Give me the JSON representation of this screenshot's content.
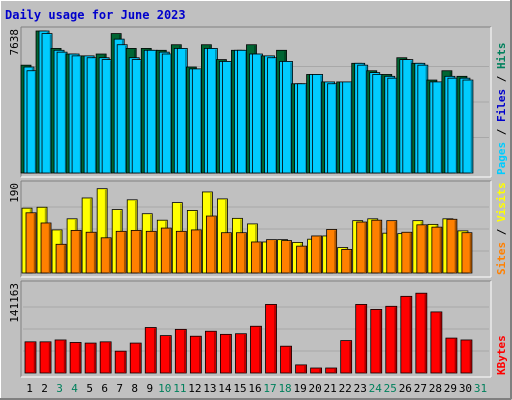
{
  "chart_data": {
    "type": "bar",
    "title": "Daily usage for June 2023",
    "categories": [
      "1",
      "2",
      "3",
      "4",
      "5",
      "6",
      "7",
      "8",
      "9",
      "10",
      "11",
      "12",
      "13",
      "14",
      "15",
      "16",
      "17",
      "18",
      "19",
      "20",
      "21",
      "22",
      "23",
      "24",
      "25",
      "26",
      "27",
      "28",
      "29",
      "30",
      "31"
    ],
    "weekend_days": [
      "3",
      "4",
      "10",
      "11",
      "17",
      "18",
      "24",
      "25",
      "31"
    ],
    "colors": {
      "hits": "#006633",
      "files": "#00ccff",
      "pages": "#00ccff",
      "visits": "#ffff00",
      "sites": "#ff8000",
      "kbytes": "#ff0000",
      "weekday_label": "#000000",
      "weekend_label": "#00805c",
      "legend_hits": "#00805c",
      "legend_files": "#0000cc",
      "legend_pages": "#00ccff",
      "legend_visits": "#ffff00",
      "legend_sites": "#ff8000",
      "legend_kbytes": "#ff0000",
      "title": "#0000cc"
    },
    "panels": [
      {
        "name": "hits-files-pages",
        "ymax_label": "7638",
        "ymax": 7638,
        "legend": [
          "Pages",
          "Files",
          "Hits"
        ],
        "series": [
          {
            "name": "Hits",
            "color": "#006633",
            "values": [
              5800,
              7638,
              6700,
              6400,
              6300,
              6400,
              7500,
              6700,
              6700,
              6600,
              6900,
              5700,
              6900,
              6100,
              6600,
              6900,
              6300,
              6600,
              4800,
              5300,
              4900,
              4900,
              5900,
              5500,
              5300,
              6200,
              5900,
              5000,
              5500,
              5200,
              0
            ]
          },
          {
            "name": "Files",
            "color": "#00ccff",
            "values": [
              5700,
              7638,
              6600,
              6400,
              6300,
              6200,
              7200,
              6200,
              6600,
              6500,
              6700,
              5600,
              6700,
              6000,
              6600,
              6400,
              6300,
              6000,
              4800,
              5300,
              4900,
              4900,
              5900,
              5400,
              5200,
              6100,
              5900,
              4900,
              5200,
              5100,
              0
            ]
          },
          {
            "name": "Pages",
            "color": "#00ccff",
            "values": [
              5500,
              7500,
              6500,
              6300,
              6200,
              6100,
              6900,
              6100,
              6600,
              6400,
              6700,
              5600,
              6700,
              6000,
              6600,
              6400,
              6200,
              6000,
              4800,
              5300,
              4800,
              4900,
              5800,
              5300,
              5100,
              6100,
              5800,
              4900,
              5100,
              5000,
              0
            ]
          }
        ]
      },
      {
        "name": "visits-sites",
        "ymax_label": "190",
        "ymax": 190,
        "legend": [
          "Sites",
          "Visits"
        ],
        "series": [
          {
            "name": "Visits",
            "color": "#ffff00",
            "values": [
              140,
              142,
              93,
              117,
              162,
              182,
              137,
              158,
              128,
              114,
              152,
              135,
              175,
              160,
              118,
              106,
              67,
              72,
              66,
              73,
              80,
              55,
              113,
              117,
              86,
              85,
              113,
              105,
              117,
              91,
              0
            ]
          },
          {
            "name": "Sites",
            "color": "#ff8000",
            "values": [
              130,
              108,
              62,
              92,
              88,
              76,
              90,
              92,
              90,
              97,
              90,
              93,
              123,
              87,
              87,
              67,
              72,
              70,
              58,
              80,
              94,
              51,
              110,
              114,
              113,
              88,
              104,
              99,
              116,
              87,
              0
            ]
          }
        ]
      },
      {
        "name": "kbytes",
        "ymax_label": "141163",
        "ymax": 141163,
        "legend": [
          "KBytes"
        ],
        "series": [
          {
            "name": "KBytes",
            "color": "#ff0000",
            "values": [
              50000,
              50000,
              53000,
              49000,
              48000,
              50000,
              35000,
              48000,
              73000,
              60000,
              70000,
              59000,
              67000,
              62000,
              63000,
              75000,
              110000,
              43000,
              13000,
              8000,
              8000,
              52000,
              110000,
              102000,
              107000,
              123000,
              128000,
              98000,
              56000,
              53000,
              0
            ]
          }
        ]
      }
    ]
  }
}
